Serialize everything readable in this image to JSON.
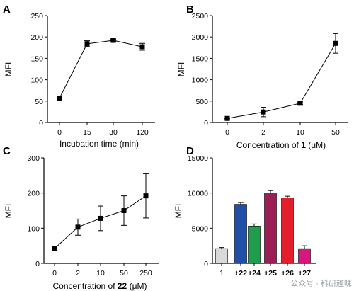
{
  "chart_data": [
    {
      "panel": "A",
      "type": "line",
      "categories": [
        "0",
        "15",
        "30",
        "120"
      ],
      "values": [
        57,
        184,
        192,
        177
      ],
      "errors": [
        2,
        7,
        3,
        8
      ],
      "xlabel": "Incubation time (min)",
      "ylabel": "MFI",
      "ylim": [
        0,
        250
      ],
      "yticks": [
        0,
        50,
        100,
        150,
        200,
        250
      ],
      "grid": false
    },
    {
      "panel": "B",
      "type": "line",
      "categories": [
        "0",
        "2",
        "10",
        "50"
      ],
      "values": [
        95,
        245,
        450,
        1850
      ],
      "errors": [
        10,
        110,
        30,
        230
      ],
      "xlabel": "Concentration of 1 (μM)",
      "xlabel_parts": [
        "Concentration of ",
        "1",
        " (",
        "μ",
        "M)"
      ],
      "ylabel": "MFI",
      "ylim": [
        0,
        2500
      ],
      "yticks": [
        0,
        500,
        1000,
        1500,
        2000,
        2500
      ],
      "grid": false
    },
    {
      "panel": "C",
      "type": "line",
      "categories": [
        "0",
        "2",
        "10",
        "50",
        "250"
      ],
      "values": [
        42,
        103,
        128,
        150,
        192
      ],
      "errors": [
        2,
        23,
        35,
        42,
        63
      ],
      "xlabel": "Concentration of 22 (μM)",
      "xlabel_parts": [
        "Concentration of ",
        "22",
        " (",
        "μ",
        "M)"
      ],
      "ylabel": "MFI",
      "ylim": [
        0,
        300
      ],
      "yticks": [
        0,
        100,
        200,
        300
      ],
      "grid": false
    },
    {
      "panel": "D",
      "type": "bar",
      "categories": [
        "1",
        "+22",
        "+24",
        "+25",
        "+26",
        "+27"
      ],
      "values": [
        2100,
        8400,
        5300,
        10000,
        9300,
        2100
      ],
      "errors": [
        150,
        250,
        300,
        350,
        250,
        400
      ],
      "colors": [
        "#d9d9d9",
        "#1f4fa8",
        "#1e9e4a",
        "#9b1f55",
        "#e31e2d",
        "#d8177e"
      ],
      "ylabel": "MFI",
      "ylim": [
        0,
        15000
      ],
      "yticks": [
        0,
        5000,
        10000,
        15000
      ],
      "grid": false
    }
  ],
  "watermark": "公众号 · 科研趣味"
}
